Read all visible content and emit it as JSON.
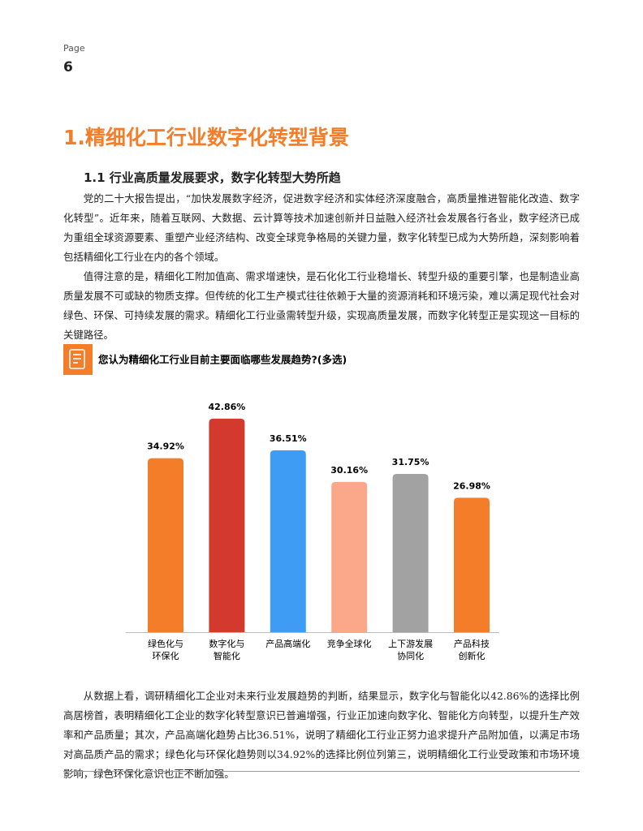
{
  "header": {
    "label": "Page",
    "page_number": "6"
  },
  "title": "1.精细化工行业数字化转型背景",
  "subtitle": "1.1 行业高质量发展要求，数字化转型大势所趋",
  "paragraphs": [
    "党的二十大报告提出，“加快发展数字经济，促进数字经济和实体经济深度融合，高质量推进智能化改造、数字化转型”。近年来，随着互联网、大数据、云计算等技术加速创新并日益融入经济社会发展各行各业，数字经济已成为重组全球资源要素、重塑产业经济结构、改变全球竞争格局的关键力量，数字化转型已成为大势所趋，深刻影响着包括精细化工行业在内的各个领域。",
    "值得注意的是，精细化工附加值高、需求增速快，是石化化工行业稳增长、转型升级的重要引擎，也是制造业高质量发展不可或缺的物质支撑。但传统的化工生产模式往往依赖于大量的资源消耗和环境污染，难以满足现代社会对绿色、环保、可持续发展的需求。精细化工行业亟需转型升级，实现高质量发展，而数字化转型正是实现这一目标的关键路径。"
  ],
  "chart_data": {
    "type": "bar",
    "title": "您认为精细化工行业目前主要面临哪些发展趋势?(多选)",
    "categories": [
      [
        "绿色化与",
        "环保化"
      ],
      [
        "数字化与",
        "智能化"
      ],
      [
        "产品高端化"
      ],
      [
        "竞争全球化"
      ],
      [
        "上下游发展",
        "协同化"
      ],
      [
        "产品科技",
        "创新化"
      ]
    ],
    "values": [
      34.92,
      42.86,
      36.51,
      30.16,
      31.75,
      26.98
    ],
    "value_labels": [
      "34.92%",
      "42.86%",
      "36.51%",
      "30.16%",
      "31.75%",
      "26.98%"
    ],
    "colors": [
      "#f47d2a",
      "#d3392c",
      "#3f9cf5",
      "#fba78a",
      "#a2a2a2",
      "#f47d2a"
    ]
  },
  "conclusion": "从数据上看，调研精细化工企业对未来行业发展趋势的判断，结果显示，数字化与智能化以42.86%的选择比例高居榜首，表明精细化工企业的数字化转型意识已普遍增强，行业正加速向数字化、智能化方向转型，以提升生产效率和产品质量；其次，产品高端化趋势占比36.51%，说明了精细化工行业正努力追求提升产品附加值，以满足市场对高品质产品的需求；绿色化与环保化趋势则以34.92%的选择比例位列第三，说明精细化工行业受政策和市场环境影响，绿色环保化意识也正不断加强。"
}
